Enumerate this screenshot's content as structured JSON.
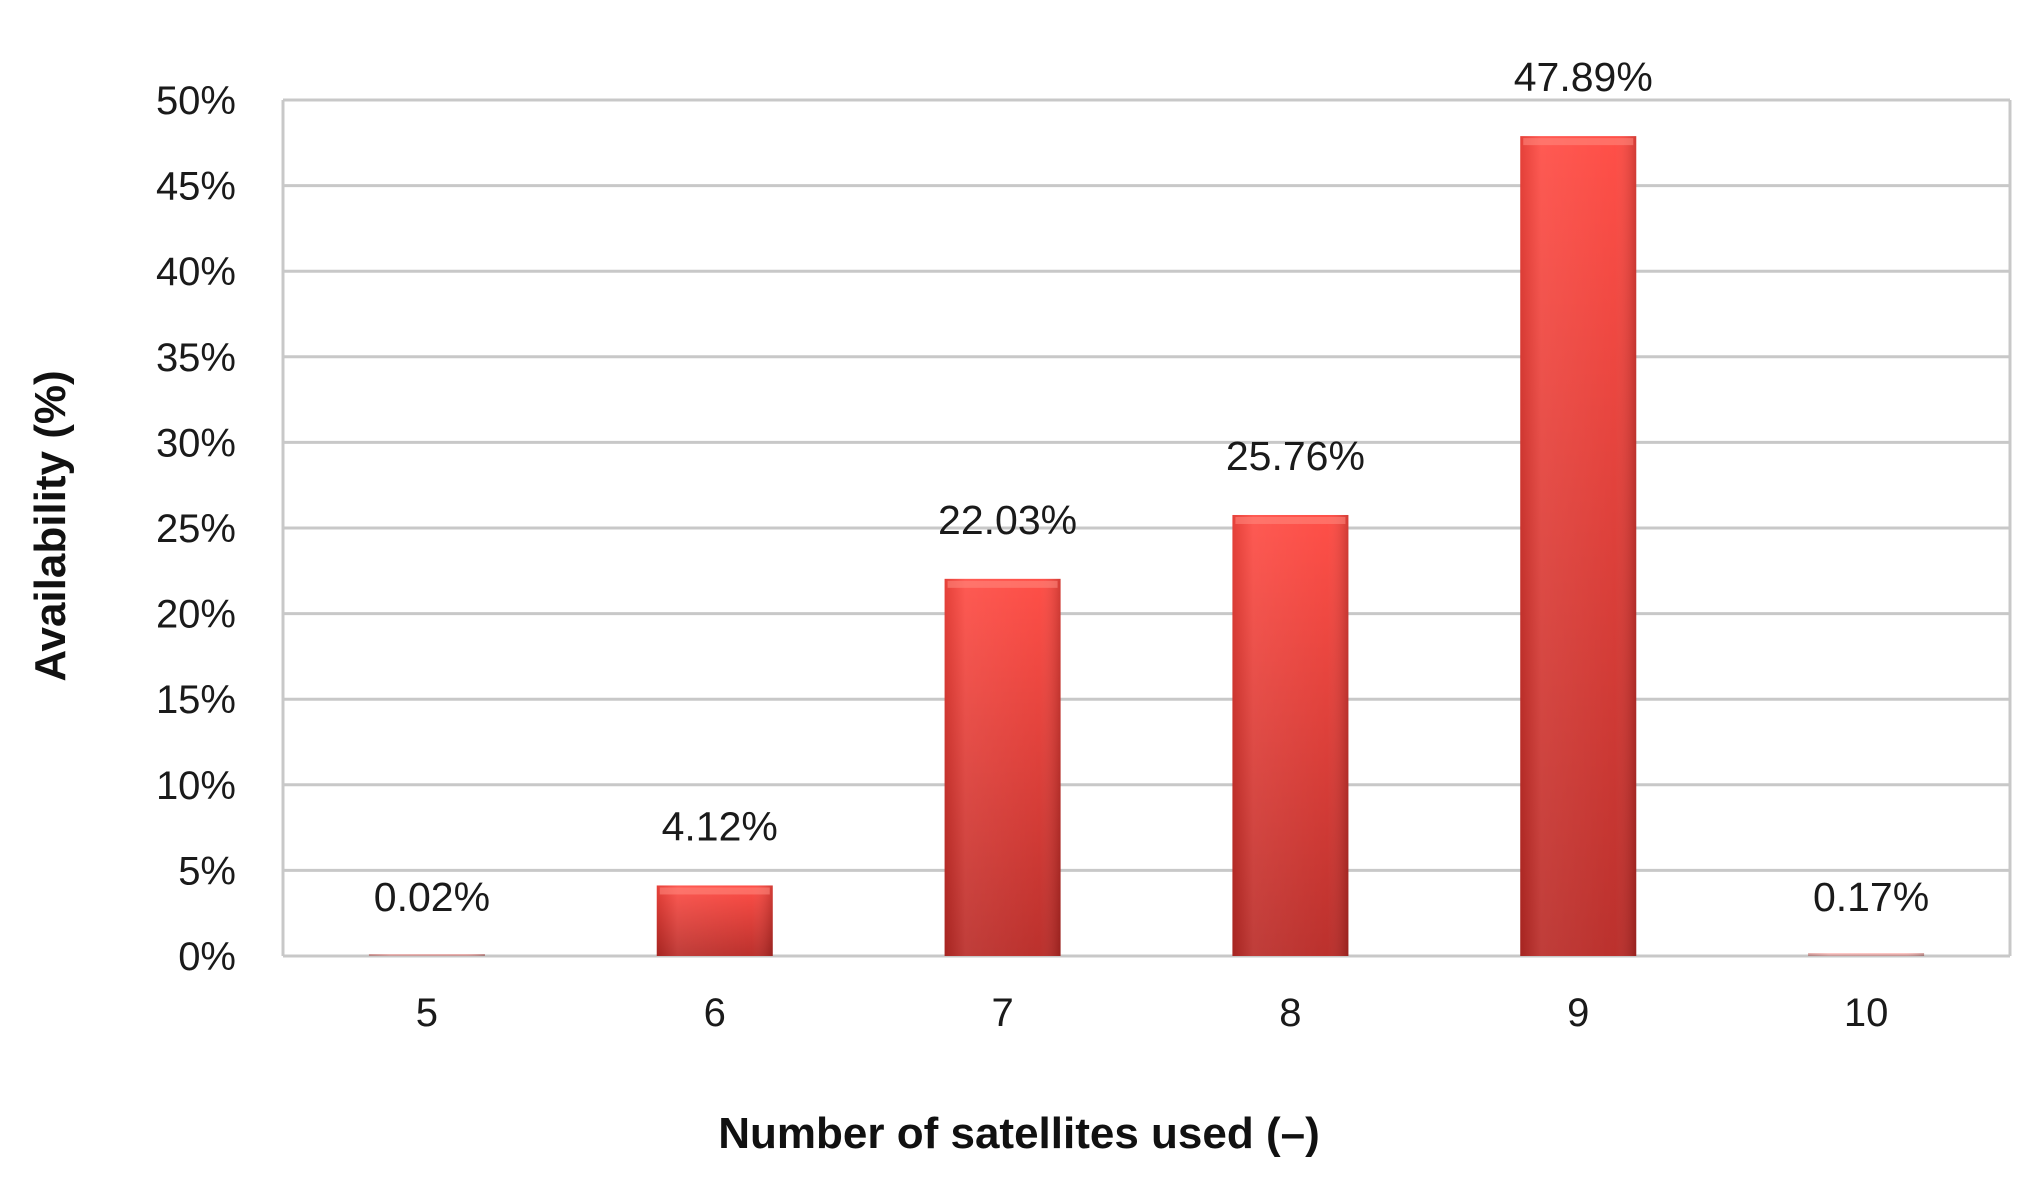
{
  "chart_data": {
    "type": "bar",
    "title": "",
    "xlabel": "Number of satellites used (–)",
    "ylabel": "Availability (%)",
    "categories": [
      "5",
      "6",
      "7",
      "8",
      "9",
      "10"
    ],
    "series": [
      {
        "values": [
          0.02,
          4.12,
          22.03,
          25.76,
          47.89,
          0.17
        ],
        "data_labels": [
          "0.02%",
          "4.12%",
          "22.03%",
          "25.76%",
          "47.89%",
          "0.17%"
        ]
      }
    ],
    "ylim": [
      0,
      50
    ],
    "yticks": [
      0,
      5,
      10,
      15,
      20,
      25,
      30,
      35,
      40,
      45,
      50
    ],
    "ytick_labels": [
      "0%",
      "5%",
      "10%",
      "15%",
      "20%",
      "25%",
      "30%",
      "35%",
      "40%",
      "45%",
      "50%"
    ],
    "grid": true,
    "legend": "none",
    "colors": {
      "bar_top": "#ff4840",
      "bar_bottom": "#b82824",
      "grid": "#c8c8c8",
      "axis_text": "#1a1a1a"
    }
  }
}
